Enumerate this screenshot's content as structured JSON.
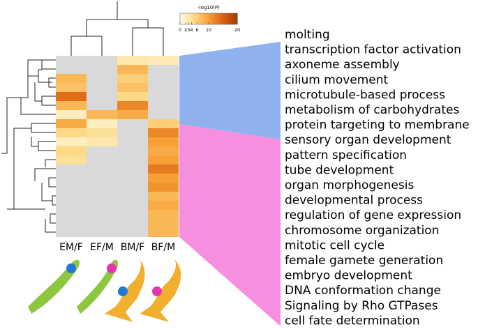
{
  "chart_data": {
    "type": "heatmap",
    "colorbar_title": "-log10(P)",
    "clim": [
      0,
      20
    ],
    "colorbar_ticks": [
      0,
      2,
      3,
      4,
      6,
      10,
      20
    ],
    "colorscale": [
      "#fffbe6",
      "#fdd985",
      "#f7a035",
      "#d9620f",
      "#a33a00"
    ],
    "missing_color": "#d9d9d9",
    "columns": [
      "EM/F",
      "EF/M",
      "BM/F",
      "BF/M"
    ],
    "rows": [
      "molting",
      "transcription factor activation",
      "axoneme assembly",
      "cilium movement",
      "microtubule-based process",
      "metabolism of carbohydrates",
      "protein targeting to membrane",
      "sensory organ development",
      "pattern specification",
      "tube development",
      "organ morphogenesis",
      "developmental process",
      "regulation of gene expression",
      "chromosome organization",
      "mitotic cell cycle",
      "female gamete generation",
      "embryo development",
      "DNA conformation change",
      "Signaling by Rho GTPases",
      "cell fate determination"
    ],
    "values": [
      [
        null,
        null,
        3,
        2.5
      ],
      [
        null,
        null,
        8,
        null
      ],
      [
        8,
        null,
        6,
        null
      ],
      [
        7,
        null,
        7,
        null
      ],
      [
        14,
        null,
        5,
        null
      ],
      [
        8,
        null,
        12,
        null
      ],
      [
        2,
        8,
        9,
        null
      ],
      [
        9,
        2,
        null,
        6
      ],
      [
        5,
        4,
        null,
        12
      ],
      [
        2,
        3,
        null,
        10
      ],
      [
        5,
        null,
        null,
        9
      ],
      [
        4,
        null,
        null,
        10
      ],
      [
        null,
        null,
        null,
        13
      ],
      [
        null,
        null,
        null,
        10
      ],
      [
        null,
        null,
        null,
        11
      ],
      [
        null,
        null,
        null,
        8
      ],
      [
        null,
        null,
        null,
        9
      ],
      [
        null,
        null,
        null,
        8
      ],
      [
        null,
        null,
        null,
        8
      ],
      [
        null,
        null,
        null,
        8
      ]
    ]
  }
}
